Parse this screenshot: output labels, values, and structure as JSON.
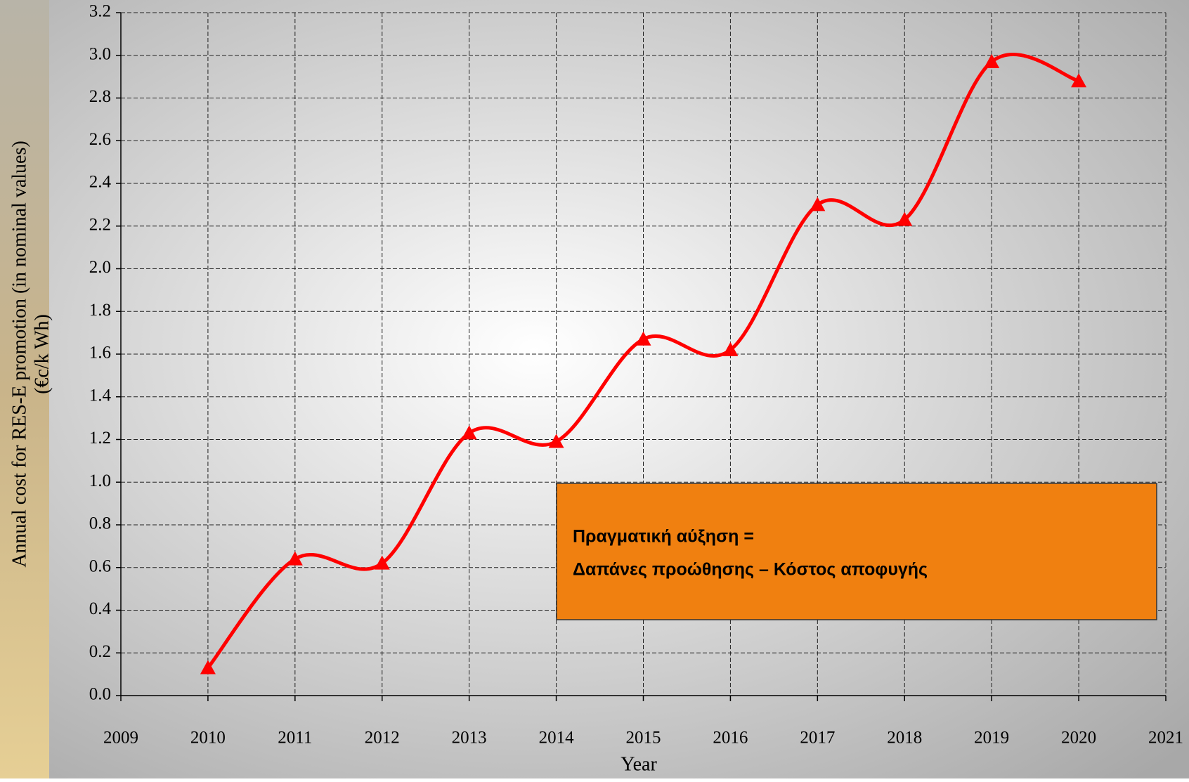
{
  "chart_data": {
    "type": "line",
    "x_label": "Year",
    "y_label": [
      "Annual cost for RES-E promotion (in nominal values)",
      "(€c/k Wh)"
    ],
    "x": [
      2010,
      2011,
      2012,
      2013,
      2014,
      2015,
      2016,
      2017,
      2018,
      2019,
      2020
    ],
    "series": [
      {
        "color": "#ff0000",
        "values": [
          0.13,
          0.64,
          0.62,
          1.23,
          1.19,
          1.67,
          1.62,
          2.3,
          2.23,
          2.97,
          2.88
        ]
      }
    ],
    "xlim": [
      2009,
      2021
    ],
    "xticks": [
      2009,
      2010,
      2011,
      2012,
      2013,
      2014,
      2015,
      2016,
      2017,
      2018,
      2019,
      2020,
      2021
    ],
    "ylim": [
      0,
      3.2
    ],
    "yticks": [
      {
        "value": 0,
        "label": "0.0"
      },
      0.2,
      0.4,
      0.6,
      0.8,
      {
        "value": 1,
        "label": "1.0"
      },
      1.2,
      1.4,
      1.6,
      1.8,
      {
        "value": 2,
        "label": "2.0"
      },
      2.2,
      2.4,
      2.6,
      2.8,
      {
        "value": 3,
        "label": "3.0"
      },
      3.2
    ],
    "grid": true,
    "smooth": true,
    "annotation": [
      "Πραγματική αύξηση =",
      "Δαπάνες προώθησης – Κόστος αποφυγής"
    ]
  }
}
